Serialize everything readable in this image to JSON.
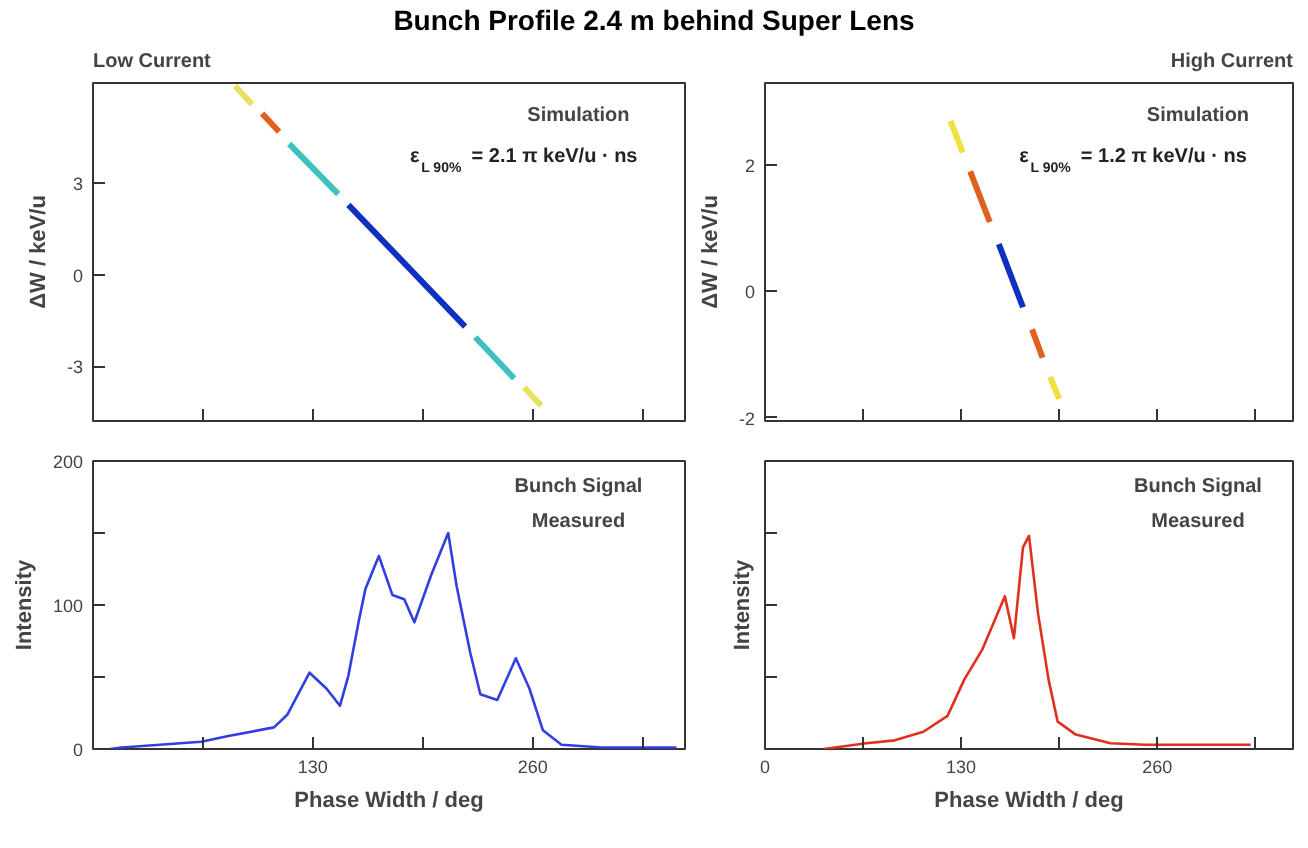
{
  "chart_data": [
    {
      "type": "line",
      "title": "Bunch Profile 2.4 m behind Super Lens",
      "subtitle": "Low Current",
      "ylabel": "ΔW / keV/u",
      "annotations": [
        "Simulation",
        "ε$_{L 90%}$ = 2.1 π keV/u · ns"
      ],
      "xlim": [
        0,
        350
      ],
      "ylim": [
        -4.8,
        6.3
      ],
      "xticks": [
        {
          "value": 65,
          "label": null
        },
        {
          "value": 130,
          "label": null
        },
        {
          "value": 195,
          "label": null
        },
        {
          "value": 260,
          "label": null
        },
        {
          "value": 325,
          "label": null
        }
      ],
      "yticks": [
        -3,
        0,
        3
      ],
      "tick_labels": "y",
      "series": [
        {
          "color": "#e8e060",
          "x": [
            84,
            94,
            175,
            255,
            265
          ],
          "values": [
            6.2,
            5.6,
            null,
            -3.7,
            -4.3
          ]
        },
        {
          "color": "#40c0c0",
          "x": [
            116,
            145,
            185,
            226,
            249
          ],
          "values": [
            4.3,
            2.65,
            null,
            -2.05,
            -3.4
          ]
        },
        {
          "color": "#e06020",
          "x": [
            100,
            110
          ],
          "values": [
            5.3,
            4.7
          ]
        },
        {
          "color": "#1030c0",
          "x": [
            151,
            220
          ],
          "values": [
            2.3,
            -1.7
          ]
        }
      ]
    },
    {
      "type": "line",
      "subtitle": "High Current",
      "ylabel": "ΔW / keV/u",
      "annotations": [
        "Simulation",
        "ε$_{L 90%}$ = 1.2 π keV/u · ns"
      ],
      "xlim": [
        0,
        350
      ],
      "ylim": [
        -2.05,
        3.3
      ],
      "xticks": [
        {
          "value": 65,
          "label": null
        },
        {
          "value": 130,
          "label": null
        },
        {
          "value": 195,
          "label": null
        },
        {
          "value": 260,
          "label": null
        },
        {
          "value": 325,
          "label": null
        }
      ],
      "yticks": [
        -2,
        0,
        2
      ],
      "tick_labels": "y",
      "series": [
        {
          "color": "#f0e040",
          "x": [
            123,
            131,
            160,
            189,
            195
          ],
          "values": [
            2.7,
            2.2,
            null,
            -1.35,
            -1.7
          ]
        },
        {
          "color": "#e06020",
          "x": [
            136,
            149,
            163,
            177,
            184
          ],
          "values": [
            1.9,
            1.1,
            null,
            -0.6,
            -1.05
          ]
        },
        {
          "color": "#1030c0",
          "x": [
            155,
            171
          ],
          "values": [
            0.75,
            -0.25
          ]
        }
      ]
    },
    {
      "type": "line",
      "xlabel": "Phase Width / deg",
      "ylabel": "Intensity",
      "annotations": [
        "Bunch Signal",
        "Measured"
      ],
      "xlim": [
        0,
        350
      ],
      "ylim": [
        0,
        200
      ],
      "xticks": [
        {
          "value": 65,
          "label": null
        },
        130,
        {
          "value": 195,
          "label": null
        },
        260,
        {
          "value": 325,
          "label": null
        }
      ],
      "yticks": [
        0,
        {
          "value": 50,
          "label": null
        },
        100,
        {
          "value": 150,
          "label": null
        },
        200
      ],
      "series": [
        {
          "color": "#3040e0",
          "x": [
            10,
            17,
            64,
            80,
            107,
            115,
            128,
            138,
            146,
            151,
            157,
            161,
            169,
            177,
            184,
            190,
            200,
            210,
            215,
            223,
            229,
            239,
            250,
            258,
            266,
            277,
            301,
            336,
            345
          ],
          "values": [
            0,
            1,
            5,
            9,
            15,
            24,
            53,
            42,
            30,
            51,
            88,
            111,
            134,
            107,
            104,
            88,
            121,
            150,
            113,
            67,
            38,
            34,
            63,
            42,
            13,
            3,
            1,
            1,
            1
          ]
        }
      ]
    },
    {
      "type": "line",
      "xlabel": "Phase Width / deg",
      "ylabel": "Intensity",
      "annotations": [
        "Bunch Signal",
        "Measured"
      ],
      "xlim": [
        0,
        350
      ],
      "ylim": [
        0,
        200
      ],
      "xticks": [
        0,
        {
          "value": 65,
          "label": null
        },
        130,
        {
          "value": 195,
          "label": null
        },
        260,
        {
          "value": 325,
          "label": null
        }
      ],
      "yticks": [
        {
          "value": 50,
          "label": null
        },
        {
          "value": 100,
          "label": null
        },
        {
          "value": 150,
          "label": null
        }
      ],
      "tick_labels": "x",
      "series": [
        {
          "color": "#e03020",
          "x": [
            39,
            67,
            86,
            105,
            121,
            132,
            144,
            159,
            165,
            171,
            175,
            181,
            188,
            194,
            206,
            229,
            252,
            322
          ],
          "values": [
            0,
            4,
            6,
            12,
            23,
            48,
            69,
            106,
            77,
            140,
            148,
            94,
            48,
            19,
            10,
            4,
            3,
            3
          ]
        }
      ]
    }
  ]
}
